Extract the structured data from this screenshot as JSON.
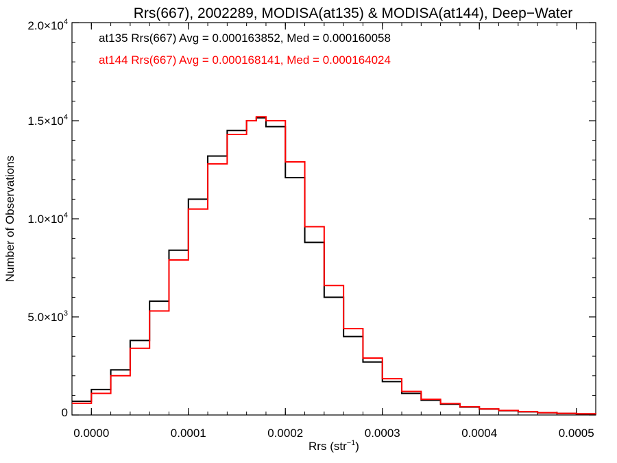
{
  "chart_data": {
    "type": "line",
    "title": "Rrs(667), 2002289, MODISA(at135) & MODISA(at144), Deep−Water",
    "xlabel_main": "Rrs (str",
    "xlabel_sup": "−1",
    "xlabel_close": ")",
    "ylabel": "Number of Observations",
    "xlim": [
      -2e-05,
      0.00052
    ],
    "ylim": [
      0,
      20000
    ],
    "grid": false,
    "legend_placement": "top-left",
    "x_ticks": [
      {
        "value": 0.0,
        "label": "0.0000"
      },
      {
        "value": 0.0001,
        "label": "0.0001"
      },
      {
        "value": 0.0002,
        "label": "0.0002"
      },
      {
        "value": 0.0003,
        "label": "0.0003"
      },
      {
        "value": 0.0004,
        "label": "0.0004"
      },
      {
        "value": 0.0005,
        "label": "0.0005"
      }
    ],
    "y_ticks": [
      {
        "value": 0,
        "mant": "0",
        "exp": ""
      },
      {
        "value": 5000,
        "mant": "5.0×10",
        "exp": "3"
      },
      {
        "value": 10000,
        "mant": "1.0×10",
        "exp": "4"
      },
      {
        "value": 15000,
        "mant": "1.5×10",
        "exp": "4"
      },
      {
        "value": 20000,
        "mant": "2.0×10",
        "exp": "4"
      }
    ],
    "series": [
      {
        "name": "at135",
        "legend": "at135 Rrs(667) Avg = 0.000163852, Med = 0.000160058",
        "color": "#000000",
        "x": [
          -2e-05,
          0.0,
          2e-05,
          4e-05,
          6e-05,
          8e-05,
          0.0001,
          0.00012,
          0.00014,
          0.00016,
          0.00017,
          0.00018,
          0.0002,
          0.00022,
          0.00024,
          0.00026,
          0.00028,
          0.0003,
          0.00032,
          0.00034,
          0.00036,
          0.00038,
          0.0004,
          0.00042,
          0.00044,
          0.00046,
          0.00048,
          0.0005,
          0.00052
        ],
        "y": [
          700,
          1300,
          2300,
          3800,
          5800,
          8400,
          11000,
          13200,
          14500,
          15000,
          15150,
          14700,
          12100,
          8800,
          6000,
          4000,
          2700,
          1700,
          1100,
          750,
          550,
          400,
          300,
          220,
          160,
          110,
          80,
          55,
          40
        ]
      },
      {
        "name": "at144",
        "legend": "at144 Rrs(667) Avg = 0.000168141, Med = 0.000164024",
        "color": "#ff0000",
        "x": [
          -2e-05,
          0.0,
          2e-05,
          4e-05,
          6e-05,
          8e-05,
          0.0001,
          0.00012,
          0.00014,
          0.00016,
          0.00017,
          0.00018,
          0.0002,
          0.00022,
          0.00024,
          0.00026,
          0.00028,
          0.0003,
          0.00032,
          0.00034,
          0.00036,
          0.00038,
          0.0004,
          0.00042,
          0.00044,
          0.00046,
          0.00048,
          0.0005,
          0.00052
        ],
        "y": [
          600,
          1100,
          2000,
          3400,
          5300,
          7900,
          10500,
          12800,
          14300,
          15000,
          15200,
          15000,
          12900,
          9600,
          6600,
          4400,
          2900,
          1850,
          1200,
          800,
          580,
          420,
          310,
          230,
          170,
          120,
          85,
          60,
          45
        ]
      }
    ]
  }
}
